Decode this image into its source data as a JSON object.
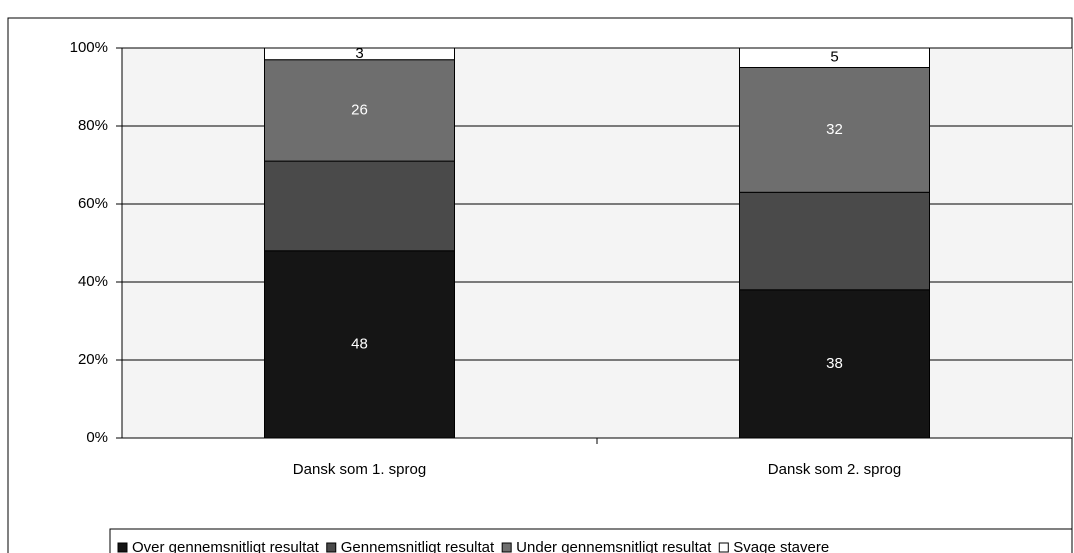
{
  "chart_data": {
    "type": "stacked_bar",
    "categories": [
      "Dansk som 1. sprog",
      "Dansk som 2. sprog"
    ],
    "series": [
      {
        "name": "Over gennemsnitligt resultat",
        "color": "#151515",
        "values": [
          48,
          38
        ],
        "label_color": "#ffffff",
        "show_labels": true
      },
      {
        "name": "Gennemsnitligt resultat",
        "color": "#4a4a4a",
        "values": [
          23,
          25
        ],
        "label_color": "#ffffff",
        "show_labels": false
      },
      {
        "name": "Under gennemsnitligt resultat",
        "color": "#6e6e6e",
        "values": [
          26,
          32
        ],
        "label_color": "#ffffff",
        "show_labels": true
      },
      {
        "name": "Svage stavere",
        "color": "#ffffff",
        "values": [
          3,
          5
        ],
        "label_color": "#000000",
        "show_labels": true
      }
    ],
    "ylim": [
      0,
      100
    ],
    "yticks": [
      {
        "value": 0,
        "label": "0%"
      },
      {
        "value": 20,
        "label": "20%"
      },
      {
        "value": 40,
        "label": "40%"
      },
      {
        "value": 60,
        "label": "60%"
      },
      {
        "value": 80,
        "label": "80%"
      },
      {
        "value": 100,
        "label": "100%"
      }
    ],
    "grid": true,
    "legend": "bottom"
  }
}
